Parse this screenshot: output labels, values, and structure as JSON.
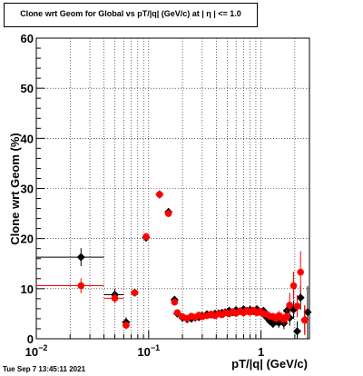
{
  "title": "Clone wrt Geom for Global vs pT/|q| (GeV/c) at |  η | <= 1.0",
  "timestamp": "Tue Sep  7 13:45:11 2021",
  "chart_data": {
    "type": "scatter",
    "title": "Clone wrt Geom for Global vs pT/|q| (GeV/c) at |  η | <= 1.0",
    "xlabel": "pT/|q| (GeV/c)",
    "ylabel": "Clone wrt Geom (%)",
    "xscale": "log",
    "xlim": [
      0.01,
      2.7
    ],
    "ylim": [
      0,
      60
    ],
    "grid": true,
    "x_tick_labels": [
      {
        "v": 0.01,
        "base": "10",
        "exp": "−2"
      },
      {
        "v": 0.1,
        "base": "10",
        "exp": "−1"
      },
      {
        "v": 1,
        "base": "1",
        "exp": ""
      }
    ],
    "y_ticks": [
      0,
      10,
      20,
      30,
      40,
      50,
      60
    ],
    "series": [
      {
        "color": "#000000",
        "marker": "diamond",
        "points": [
          {
            "x": 0.025,
            "y": 16.3,
            "xlo": 0.01,
            "xhi": 0.04,
            "yerr": 1.8
          },
          {
            "x": 0.05,
            "y": 8.8,
            "xlo": 0.04,
            "xhi": 0.06,
            "yerr": 1.2
          },
          {
            "x": 0.063,
            "y": 3.3,
            "xlo": 0.058,
            "xhi": 0.068,
            "yerr": 1.0
          },
          {
            "x": 0.075,
            "y": 9.2,
            "xlo": 0.07,
            "xhi": 0.08,
            "yerr": 0.7
          },
          {
            "x": 0.095,
            "y": 20.2,
            "xlo": 0.088,
            "xhi": 0.1,
            "yerr": 0.8
          },
          {
            "x": 0.125,
            "y": 28.8,
            "xlo": 0.117,
            "xhi": 0.133,
            "yerr": 0.8
          },
          {
            "x": 0.15,
            "y": 25.3,
            "xlo": 0.142,
            "xhi": 0.158,
            "yerr": 0.8
          },
          {
            "x": 0.17,
            "y": 7.8,
            "xlo": 0.164,
            "xhi": 0.176,
            "yerr": 0.6
          },
          {
            "x": 0.18,
            "y": 5.0,
            "yerr": 0.5
          },
          {
            "x": 0.2,
            "y": 4.2,
            "yerr": 0.4
          },
          {
            "x": 0.22,
            "y": 3.9,
            "yerr": 0.4
          },
          {
            "x": 0.24,
            "y": 4.0,
            "yerr": 0.4
          },
          {
            "x": 0.26,
            "y": 4.2,
            "yerr": 0.4
          },
          {
            "x": 0.28,
            "y": 4.3,
            "yerr": 0.4
          },
          {
            "x": 0.3,
            "y": 4.6,
            "yerr": 0.4
          },
          {
            "x": 0.33,
            "y": 4.9,
            "yerr": 0.4
          },
          {
            "x": 0.36,
            "y": 4.8,
            "yerr": 0.4
          },
          {
            "x": 0.39,
            "y": 5.0,
            "yerr": 0.4
          },
          {
            "x": 0.42,
            "y": 5.1,
            "yerr": 0.4
          },
          {
            "x": 0.45,
            "y": 5.2,
            "yerr": 0.4
          },
          {
            "x": 0.48,
            "y": 5.3,
            "yerr": 0.4
          },
          {
            "x": 0.52,
            "y": 5.6,
            "yerr": 0.4
          },
          {
            "x": 0.56,
            "y": 5.3,
            "yerr": 0.4
          },
          {
            "x": 0.6,
            "y": 5.7,
            "yerr": 0.4
          },
          {
            "x": 0.65,
            "y": 5.5,
            "yerr": 0.4
          },
          {
            "x": 0.7,
            "y": 5.9,
            "yerr": 0.4
          },
          {
            "x": 0.75,
            "y": 5.6,
            "yerr": 0.5
          },
          {
            "x": 0.8,
            "y": 5.8,
            "yerr": 0.5
          },
          {
            "x": 0.86,
            "y": 5.5,
            "yerr": 0.5
          },
          {
            "x": 0.92,
            "y": 5.9,
            "yerr": 0.5
          },
          {
            "x": 0.98,
            "y": 5.4,
            "yerr": 0.5
          },
          {
            "x": 1.05,
            "y": 5.6,
            "yerr": 0.5
          },
          {
            "x": 1.12,
            "y": 4.3,
            "yerr": 0.6
          },
          {
            "x": 1.2,
            "y": 3.5,
            "yerr": 0.7
          },
          {
            "x": 1.28,
            "y": 3.0,
            "yerr": 0.8
          },
          {
            "x": 1.36,
            "y": 3.6,
            "yerr": 0.9
          },
          {
            "x": 1.44,
            "y": 3.2,
            "yerr": 1.0
          },
          {
            "x": 1.52,
            "y": 3.8,
            "yerr": 1.1
          },
          {
            "x": 1.6,
            "y": 3.1,
            "yerr": 1.2
          },
          {
            "x": 1.7,
            "y": 5.6,
            "yerr": 1.4
          },
          {
            "x": 1.8,
            "y": 4.2,
            "yerr": 1.6
          },
          {
            "x": 1.95,
            "y": 5.8,
            "yerr": 1.8
          },
          {
            "x": 2.1,
            "y": 1.5,
            "yerr": 2.0
          },
          {
            "x": 2.25,
            "y": 8.2,
            "yerr": 2.4
          },
          {
            "x": 2.45,
            "y": 3.8,
            "yerr": 2.8
          },
          {
            "x": 2.6,
            "y": 5.3,
            "yerr": 5.2
          }
        ]
      },
      {
        "color": "#ff0000",
        "marker": "circle",
        "points": [
          {
            "x": 0.025,
            "y": 10.6,
            "xlo": 0.01,
            "xhi": 0.04,
            "yerr": 1.5
          },
          {
            "x": 0.05,
            "y": 8.1,
            "xlo": 0.04,
            "xhi": 0.06,
            "yerr": 1.0
          },
          {
            "x": 0.063,
            "y": 2.7,
            "xlo": 0.058,
            "xhi": 0.068,
            "yerr": 0.8
          },
          {
            "x": 0.075,
            "y": 9.2,
            "xlo": 0.07,
            "xhi": 0.08,
            "yerr": 0.6
          },
          {
            "x": 0.095,
            "y": 20.4,
            "xlo": 0.088,
            "xhi": 0.1,
            "yerr": 0.7
          },
          {
            "x": 0.125,
            "y": 28.8,
            "xlo": 0.117,
            "xhi": 0.133,
            "yerr": 0.7
          },
          {
            "x": 0.15,
            "y": 25.0,
            "xlo": 0.142,
            "xhi": 0.158,
            "yerr": 0.7
          },
          {
            "x": 0.17,
            "y": 7.3,
            "xlo": 0.164,
            "xhi": 0.176,
            "yerr": 0.6
          },
          {
            "x": 0.18,
            "y": 5.2,
            "yerr": 0.5
          },
          {
            "x": 0.2,
            "y": 4.4,
            "yerr": 0.4
          },
          {
            "x": 0.22,
            "y": 4.1,
            "yerr": 0.4
          },
          {
            "x": 0.24,
            "y": 4.5,
            "yerr": 0.4
          },
          {
            "x": 0.26,
            "y": 4.3,
            "yerr": 0.4
          },
          {
            "x": 0.28,
            "y": 4.7,
            "yerr": 0.4
          },
          {
            "x": 0.3,
            "y": 4.4,
            "yerr": 0.4
          },
          {
            "x": 0.33,
            "y": 4.6,
            "yerr": 0.4
          },
          {
            "x": 0.36,
            "y": 4.9,
            "yerr": 0.4
          },
          {
            "x": 0.39,
            "y": 4.6,
            "yerr": 0.4
          },
          {
            "x": 0.42,
            "y": 5.0,
            "yerr": 0.4
          },
          {
            "x": 0.45,
            "y": 4.8,
            "yerr": 0.4
          },
          {
            "x": 0.48,
            "y": 5.2,
            "yerr": 0.4
          },
          {
            "x": 0.52,
            "y": 5.0,
            "yerr": 0.4
          },
          {
            "x": 0.56,
            "y": 5.4,
            "yerr": 0.4
          },
          {
            "x": 0.6,
            "y": 5.1,
            "yerr": 0.4
          },
          {
            "x": 0.65,
            "y": 5.5,
            "yerr": 0.4
          },
          {
            "x": 0.7,
            "y": 5.2,
            "yerr": 0.4
          },
          {
            "x": 0.75,
            "y": 5.6,
            "yerr": 0.5
          },
          {
            "x": 0.8,
            "y": 5.3,
            "yerr": 0.5
          },
          {
            "x": 0.86,
            "y": 5.7,
            "yerr": 0.5
          },
          {
            "x": 0.92,
            "y": 5.2,
            "yerr": 0.5
          },
          {
            "x": 0.98,
            "y": 5.5,
            "yerr": 0.5
          },
          {
            "x": 1.05,
            "y": 5.0,
            "yerr": 0.5
          },
          {
            "x": 1.12,
            "y": 4.9,
            "yerr": 0.6
          },
          {
            "x": 1.2,
            "y": 4.5,
            "yerr": 0.7
          },
          {
            "x": 1.28,
            "y": 4.4,
            "yerr": 0.8
          },
          {
            "x": 1.36,
            "y": 4.1,
            "yerr": 0.9
          },
          {
            "x": 1.44,
            "y": 4.6,
            "yerr": 1.0
          },
          {
            "x": 1.52,
            "y": 4.2,
            "yerr": 1.1
          },
          {
            "x": 1.6,
            "y": 3.9,
            "yerr": 1.2
          },
          {
            "x": 1.7,
            "y": 4.4,
            "yerr": 1.4
          },
          {
            "x": 1.8,
            "y": 6.7,
            "yerr": 2.5
          },
          {
            "x": 1.95,
            "y": 10.6,
            "yerr": 2.8
          },
          {
            "x": 2.1,
            "y": 6.5,
            "yerr": 2.2
          },
          {
            "x": 2.25,
            "y": 13.3,
            "yerr": 4.2
          },
          {
            "x": 2.45,
            "y": 3.7,
            "yerr": 3.0
          }
        ]
      }
    ]
  }
}
